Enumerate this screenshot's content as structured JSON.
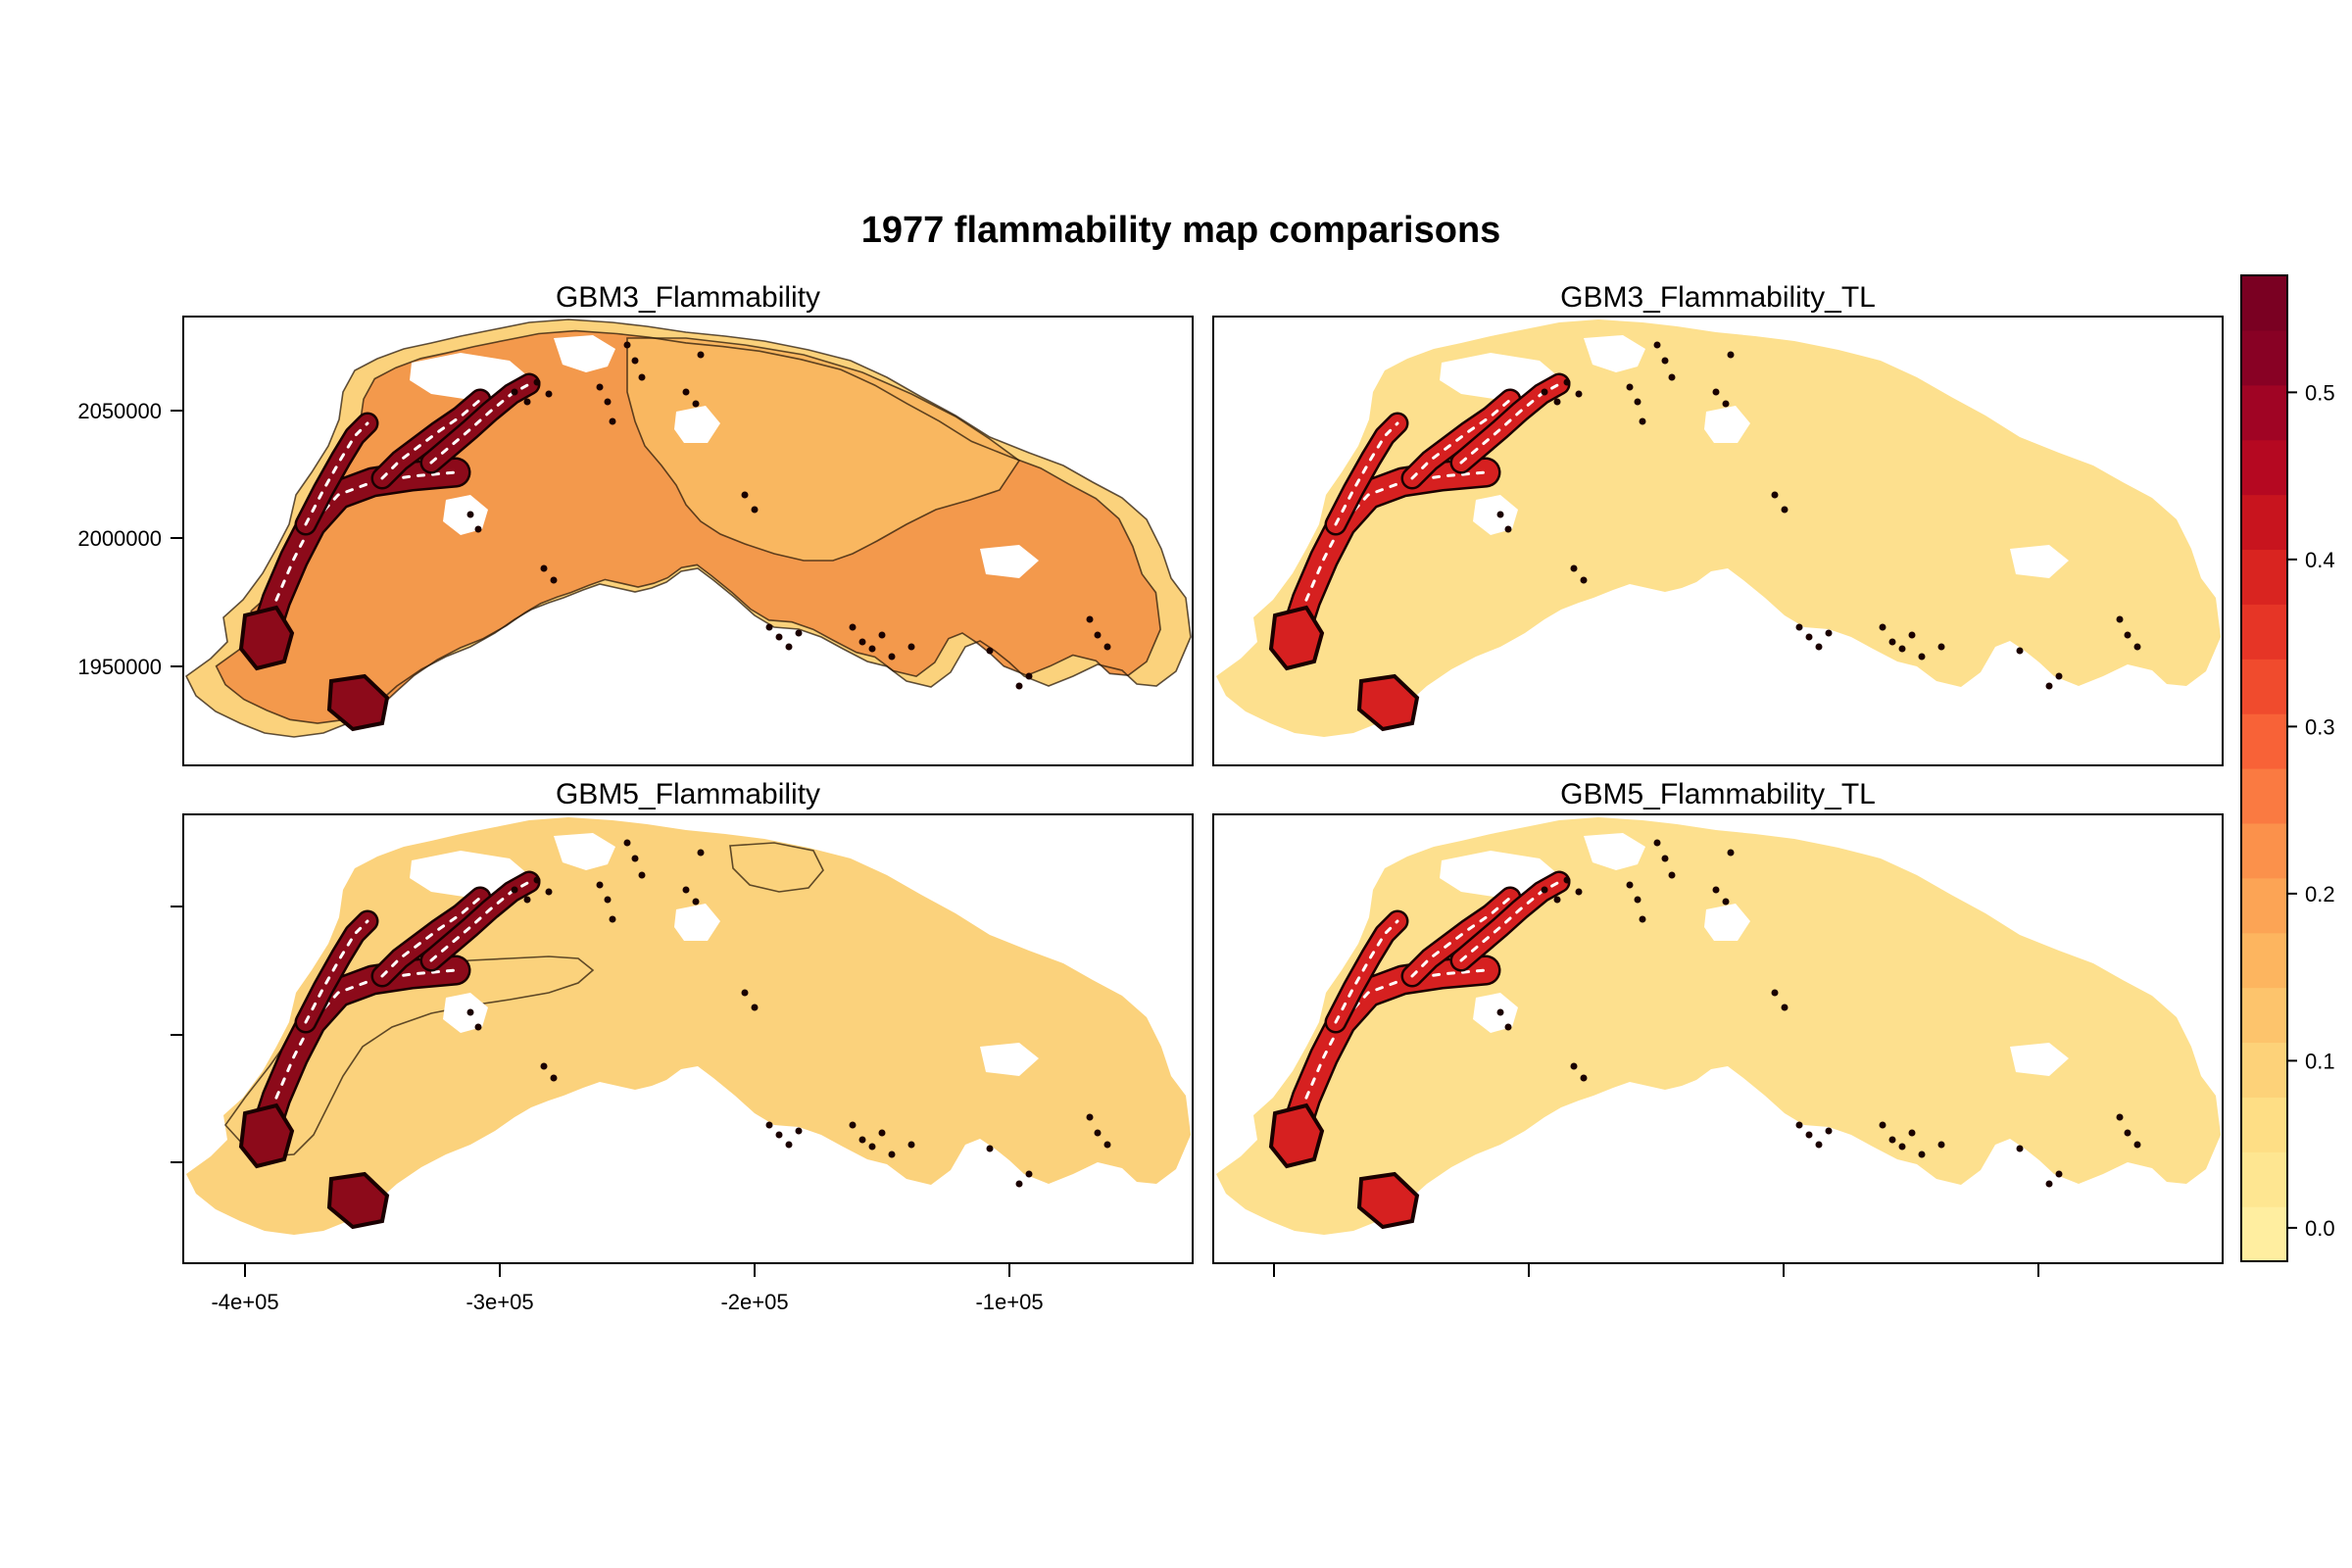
{
  "figure": {
    "title": "1977 flammability map comparisons"
  },
  "panels": [
    {
      "id": "p1",
      "title": "GBM3_Flammability",
      "base": "#f3994c",
      "mid": "#f9b760",
      "edge": "#fbd27c"
    },
    {
      "id": "p2",
      "title": "GBM3_Flammability_TL",
      "base": "#fde08e",
      "mid": "#fde08e",
      "edge": "#fde08e"
    },
    {
      "id": "p3",
      "title": "GBM5_Flammability",
      "base": "#fde08e",
      "mid": "#fbd27c",
      "edge": "#fbd27c"
    },
    {
      "id": "p4",
      "title": "GBM5_Flammability_TL",
      "base": "#fde08e",
      "mid": "#fde08e",
      "edge": "#fde08e"
    }
  ],
  "axes": {
    "x_ticks": [
      "-4e+05",
      "-3e+05",
      "-2e+05",
      "-1e+05"
    ],
    "y_ticks": [
      "2050000",
      "2000000",
      "1950000"
    ]
  },
  "colorbar": {
    "tick_labels": [
      "0.0",
      "0.1",
      "0.2",
      "0.3",
      "0.4",
      "0.5"
    ],
    "tick_values": [
      0.0,
      0.1,
      0.2,
      0.3,
      0.4,
      0.5
    ],
    "min": -0.02,
    "max": 0.57,
    "colors": [
      "#ffeea0",
      "#fee691",
      "#fede85",
      "#fdd279",
      "#fdc46c",
      "#fdb55f",
      "#fca455",
      "#fb914b",
      "#fa7a41",
      "#f86237",
      "#f04b2d",
      "#e63526",
      "#d92420",
      "#c8141e",
      "#b50821",
      "#a00424",
      "#880124",
      "#7a0022"
    ]
  },
  "colors": {
    "hotspot_fill": "#d62020",
    "hotspot_dark": "#8c0a1a",
    "hotspot_outline": "#1a0000"
  }
}
